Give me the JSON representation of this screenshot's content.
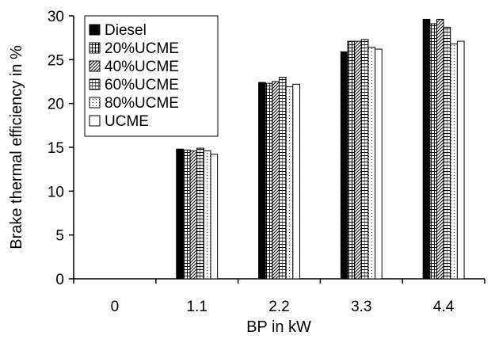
{
  "chart_data": {
    "type": "bar",
    "xlabel": "BP in kW",
    "ylabel": "Brake thermal efficiency in %",
    "categories": [
      "0",
      "1.1",
      "2.2",
      "3.3",
      "4.4"
    ],
    "ylim": [
      0,
      30
    ],
    "yticks": [
      "0",
      "5",
      "10",
      "15",
      "20",
      "25",
      "30"
    ],
    "grid": false,
    "legend_position": "top-left",
    "series": [
      {
        "name": "Diesel",
        "pattern": "solid-black",
        "values": [
          0,
          14.8,
          22.4,
          25.9,
          29.6
        ]
      },
      {
        "name": "20%UCME",
        "pattern": "grid",
        "values": [
          0,
          14.7,
          22.3,
          27.1,
          29.1
        ]
      },
      {
        "name": "40%UCME",
        "pattern": "diagonal-hatch",
        "values": [
          0,
          14.6,
          22.5,
          27.1,
          29.6
        ]
      },
      {
        "name": "60%UCME",
        "pattern": "horizontal-lines",
        "values": [
          0,
          14.9,
          23.0,
          27.3,
          28.7
        ]
      },
      {
        "name": "80%UCME",
        "pattern": "dots",
        "values": [
          0,
          14.6,
          21.9,
          26.4,
          26.8
        ]
      },
      {
        "name": "UCME",
        "pattern": "empty",
        "values": [
          0,
          14.2,
          22.2,
          26.2,
          27.1
        ]
      }
    ]
  }
}
